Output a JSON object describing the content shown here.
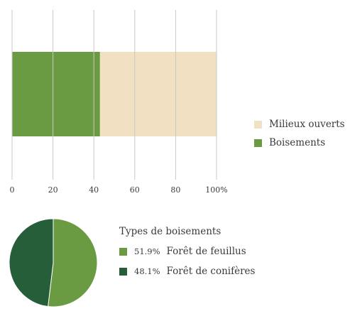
{
  "chart_data": [
    {
      "type": "bar",
      "orientation": "horizontal",
      "stacked": true,
      "categories": [
        ""
      ],
      "series": [
        {
          "name": "Boisements",
          "values": [
            43
          ],
          "color": "#6a9b43"
        },
        {
          "name": "Milieux ouverts",
          "values": [
            57
          ],
          "color": "#f1e0c1"
        }
      ],
      "xlim": [
        0,
        100
      ],
      "xticks": [
        "0",
        "20",
        "40",
        "60",
        "80",
        "100%"
      ],
      "grid": true,
      "legend": "right",
      "legend_order": [
        "Milieux ouverts",
        "Boisements"
      ]
    },
    {
      "type": "pie",
      "title": "Types de boisements",
      "slices": [
        {
          "label": "Forêt de feuillus",
          "value": 51.9,
          "pct_label": "51.9%",
          "color": "#6a9b43"
        },
        {
          "label": "Forêt de conifères",
          "value": 48.1,
          "pct_label": "48.1%",
          "color": "#255e38"
        }
      ],
      "legend": "right"
    }
  ]
}
